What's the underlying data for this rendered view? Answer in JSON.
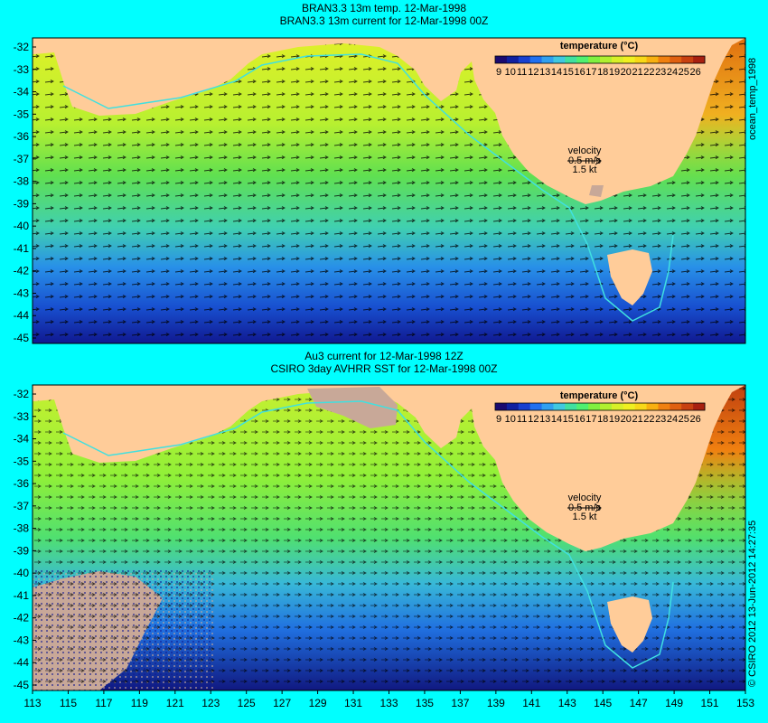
{
  "top_panel": {
    "title_line1": "BRAN3.3 13m temp. 12-Mar-1998",
    "title_line2": "BRAN3.3 13m current for 12-Mar-1998 00Z",
    "side_label": "ocean_temp_1998",
    "velocity_label": "velocity",
    "velocity_scale": "0.5 m/s",
    "velocity_alt": "1.5 kt",
    "colorbar_title": "temperature (°C)"
  },
  "bottom_panel": {
    "title_line1": "Au3 current for 12-Mar-1998 12Z",
    "title_line2": "CSIRO 3day AVHRR SST for 12-Mar-1998 00Z",
    "side_label": "© CSIRO 2012  13-Jun-2012 14:27:35",
    "velocity_label": "velocity",
    "velocity_scale": "0.5 m/s",
    "velocity_alt": "1.5 kt",
    "colorbar_title": "temperature (°C)"
  },
  "colorbar_ticks": [
    "9",
    "10",
    "11",
    "12",
    "13",
    "14",
    "15",
    "16",
    "17",
    "18",
    "19",
    "20",
    "21",
    "22",
    "23",
    "24",
    "25",
    "26"
  ],
  "colorbar_colors": [
    "#1a0a70",
    "#1020a0",
    "#1840d0",
    "#2070f0",
    "#30a0f0",
    "#40c8e0",
    "#40e0a0",
    "#50f070",
    "#80f040",
    "#b0f030",
    "#d8f028",
    "#f0f020",
    "#f8d818",
    "#f8b010",
    "#f08010",
    "#e06010",
    "#c84010",
    "#a82010"
  ],
  "y_ticks": [
    "-32",
    "-33",
    "-34",
    "-35",
    "-36",
    "-37",
    "-38",
    "-39",
    "-40",
    "-41",
    "-42",
    "-43",
    "-44",
    "-45"
  ],
  "x_ticks": [
    "113",
    "115",
    "117",
    "119",
    "121",
    "123",
    "125",
    "127",
    "129",
    "131",
    "133",
    "135",
    "137",
    "139",
    "141",
    "143",
    "145",
    "147",
    "149",
    "151",
    "153"
  ],
  "colors": {
    "page_bg": "#00ffff",
    "land": "#ffcc99",
    "missing": "#c8a898",
    "contour": "#40e0e0"
  }
}
